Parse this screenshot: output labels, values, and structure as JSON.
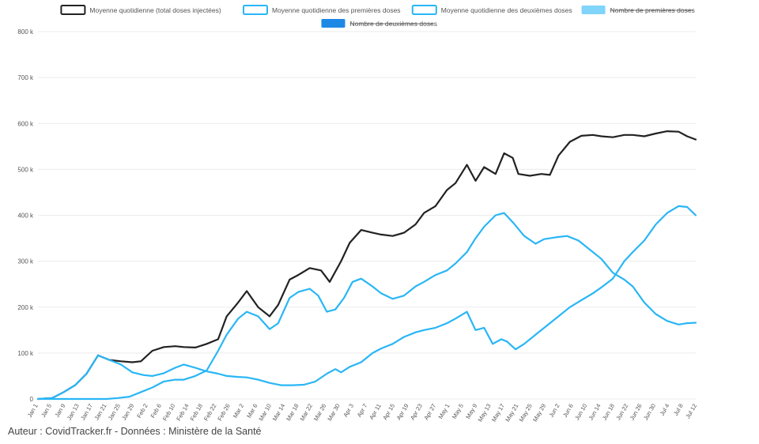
{
  "credit": "Auteur : CovidTracker.fr - Données : Ministère de la Santé",
  "chart_data": {
    "type": "line",
    "y_ticks": [
      "0",
      "100 k",
      "200 k",
      "300 k",
      "400 k",
      "500 k",
      "600 k",
      "700 k",
      "800 k"
    ],
    "ylim": [
      0,
      800000
    ],
    "grid": true,
    "legend_position": "top-center",
    "x_labels": [
      "Jan 1",
      "Jan 5",
      "Jan 9",
      "Jan 13",
      "Jan 17",
      "Jan 21",
      "Jan 25",
      "Jan 29",
      "Feb 2",
      "Feb 6",
      "Feb 10",
      "Feb 14",
      "Feb 18",
      "Feb 22",
      "Feb 26",
      "Mar 2",
      "Mar 6",
      "Mar 10",
      "Mar 14",
      "Mar 18",
      "Mar 22",
      "Mar 26",
      "Mar 30",
      "Apr 3",
      "Apr 7",
      "Apr 11",
      "Apr 15",
      "Apr 19",
      "Apr 23",
      "Apr 27",
      "May 1",
      "May 5",
      "May 9",
      "May 13",
      "May 17",
      "May 21",
      "May 25",
      "May 29",
      "Jun 2",
      "Jun 6",
      "Jun 10",
      "Jun 14",
      "Jun 18",
      "Jun 22",
      "Jun 26",
      "Jun 30",
      "Jul 4",
      "Jul 8",
      "Jul 12"
    ],
    "legend": [
      {
        "label": "Moyenne quotidienne (total doses injectées)",
        "kind": "outline",
        "color": "#222222",
        "hidden": false
      },
      {
        "label": "Moyenne quotidienne des premières doses",
        "kind": "outline",
        "color": "#29b6f6",
        "hidden": false
      },
      {
        "label": "Moyenne quotidienne des deuxièmes doses",
        "kind": "outline",
        "color": "#29b6f6",
        "hidden": false
      },
      {
        "label": "Nombre de premières doses",
        "kind": "filled",
        "color": "#81d4fa",
        "hidden": true
      },
      {
        "label": "Nombre de deuxièmes doses",
        "kind": "filled",
        "color": "#1e88e5",
        "hidden": true
      }
    ],
    "series": [
      {
        "name": "Moyenne quotidienne (total doses injectées)",
        "color": "#222222",
        "points": [
          [
            0,
            0
          ],
          [
            5,
            2000
          ],
          [
            9,
            15000
          ],
          [
            13,
            30000
          ],
          [
            17,
            55000
          ],
          [
            21,
            95000
          ],
          [
            25,
            85000
          ],
          [
            29,
            82000
          ],
          [
            33,
            80000
          ],
          [
            36,
            82000
          ],
          [
            40,
            105000
          ],
          [
            44,
            113000
          ],
          [
            48,
            115000
          ],
          [
            51,
            113000
          ],
          [
            55,
            112000
          ],
          [
            59,
            120000
          ],
          [
            63,
            130000
          ],
          [
            66,
            180000
          ],
          [
            70,
            210000
          ],
          [
            73,
            235000
          ],
          [
            77,
            200000
          ],
          [
            81,
            180000
          ],
          [
            84,
            205000
          ],
          [
            88,
            260000
          ],
          [
            91,
            270000
          ],
          [
            95,
            285000
          ],
          [
            99,
            280000
          ],
          [
            102,
            255000
          ],
          [
            106,
            300000
          ],
          [
            109,
            340000
          ],
          [
            113,
            368000
          ],
          [
            117,
            362000
          ],
          [
            120,
            358000
          ],
          [
            124,
            355000
          ],
          [
            128,
            362000
          ],
          [
            132,
            380000
          ],
          [
            135,
            405000
          ],
          [
            139,
            420000
          ],
          [
            143,
            455000
          ],
          [
            146,
            470000
          ],
          [
            150,
            510000
          ],
          [
            153,
            475000
          ],
          [
            156,
            505000
          ],
          [
            160,
            490000
          ],
          [
            163,
            535000
          ],
          [
            166,
            525000
          ],
          [
            168,
            490000
          ],
          [
            172,
            486000
          ],
          [
            176,
            490000
          ],
          [
            179,
            488000
          ],
          [
            182,
            530000
          ],
          [
            186,
            560000
          ],
          [
            190,
            573000
          ],
          [
            194,
            575000
          ],
          [
            197,
            572000
          ],
          [
            201,
            570000
          ],
          [
            205,
            575000
          ],
          [
            208,
            575000
          ],
          [
            212,
            572000
          ],
          [
            216,
            578000
          ],
          [
            220,
            583000
          ],
          [
            224,
            582000
          ],
          [
            227,
            572000
          ],
          [
            230,
            565000
          ]
        ]
      },
      {
        "name": "Moyenne quotidienne des premières doses",
        "color": "#29b6f6",
        "points": [
          [
            0,
            0
          ],
          [
            5,
            2000
          ],
          [
            9,
            15000
          ],
          [
            13,
            30000
          ],
          [
            17,
            55000
          ],
          [
            21,
            95000
          ],
          [
            25,
            85000
          ],
          [
            29,
            75000
          ],
          [
            33,
            58000
          ],
          [
            37,
            52000
          ],
          [
            40,
            50000
          ],
          [
            44,
            56000
          ],
          [
            48,
            68000
          ],
          [
            51,
            75000
          ],
          [
            55,
            68000
          ],
          [
            59,
            60000
          ],
          [
            63,
            55000
          ],
          [
            66,
            50000
          ],
          [
            70,
            48000
          ],
          [
            73,
            47000
          ],
          [
            77,
            42000
          ],
          [
            81,
            35000
          ],
          [
            85,
            30000
          ],
          [
            89,
            30000
          ],
          [
            93,
            31000
          ],
          [
            97,
            38000
          ],
          [
            101,
            55000
          ],
          [
            104,
            65000
          ],
          [
            106,
            58000
          ],
          [
            109,
            70000
          ],
          [
            113,
            80000
          ],
          [
            117,
            100000
          ],
          [
            120,
            110000
          ],
          [
            124,
            120000
          ],
          [
            128,
            135000
          ],
          [
            132,
            145000
          ],
          [
            135,
            150000
          ],
          [
            139,
            155000
          ],
          [
            143,
            165000
          ],
          [
            146,
            175000
          ],
          [
            150,
            190000
          ],
          [
            153,
            150000
          ],
          [
            156,
            155000
          ],
          [
            159,
            120000
          ],
          [
            162,
            130000
          ],
          [
            164,
            125000
          ],
          [
            167,
            108000
          ],
          [
            170,
            120000
          ],
          [
            174,
            140000
          ],
          [
            178,
            160000
          ],
          [
            182,
            180000
          ],
          [
            186,
            200000
          ],
          [
            190,
            215000
          ],
          [
            194,
            230000
          ],
          [
            197,
            243000
          ],
          [
            201,
            262000
          ],
          [
            205,
            300000
          ],
          [
            208,
            320000
          ],
          [
            212,
            345000
          ],
          [
            216,
            380000
          ],
          [
            220,
            405000
          ],
          [
            224,
            420000
          ],
          [
            227,
            418000
          ],
          [
            230,
            400000
          ]
        ]
      },
      {
        "name": "Moyenne quotidienne des deuxièmes doses",
        "color": "#29b6f6",
        "points": [
          [
            0,
            0
          ],
          [
            8,
            0
          ],
          [
            16,
            0
          ],
          [
            24,
            0
          ],
          [
            28,
            2000
          ],
          [
            32,
            5000
          ],
          [
            36,
            15000
          ],
          [
            40,
            25000
          ],
          [
            44,
            38000
          ],
          [
            48,
            42000
          ],
          [
            51,
            42000
          ],
          [
            55,
            50000
          ],
          [
            59,
            62000
          ],
          [
            63,
            105000
          ],
          [
            66,
            140000
          ],
          [
            70,
            175000
          ],
          [
            73,
            190000
          ],
          [
            77,
            180000
          ],
          [
            81,
            152000
          ],
          [
            84,
            165000
          ],
          [
            88,
            220000
          ],
          [
            91,
            233000
          ],
          [
            95,
            240000
          ],
          [
            98,
            225000
          ],
          [
            101,
            190000
          ],
          [
            104,
            195000
          ],
          [
            107,
            220000
          ],
          [
            110,
            255000
          ],
          [
            113,
            262000
          ],
          [
            117,
            245000
          ],
          [
            120,
            230000
          ],
          [
            124,
            218000
          ],
          [
            128,
            225000
          ],
          [
            132,
            245000
          ],
          [
            135,
            255000
          ],
          [
            139,
            270000
          ],
          [
            143,
            280000
          ],
          [
            146,
            295000
          ],
          [
            150,
            320000
          ],
          [
            153,
            350000
          ],
          [
            156,
            375000
          ],
          [
            160,
            400000
          ],
          [
            163,
            405000
          ],
          [
            166,
            385000
          ],
          [
            170,
            355000
          ],
          [
            174,
            338000
          ],
          [
            177,
            348000
          ],
          [
            181,
            352000
          ],
          [
            185,
            355000
          ],
          [
            189,
            345000
          ],
          [
            193,
            325000
          ],
          [
            197,
            305000
          ],
          [
            201,
            275000
          ],
          [
            205,
            260000
          ],
          [
            208,
            245000
          ],
          [
            212,
            210000
          ],
          [
            216,
            185000
          ],
          [
            220,
            170000
          ],
          [
            224,
            162000
          ],
          [
            227,
            165000
          ],
          [
            230,
            166000
          ]
        ]
      }
    ]
  }
}
